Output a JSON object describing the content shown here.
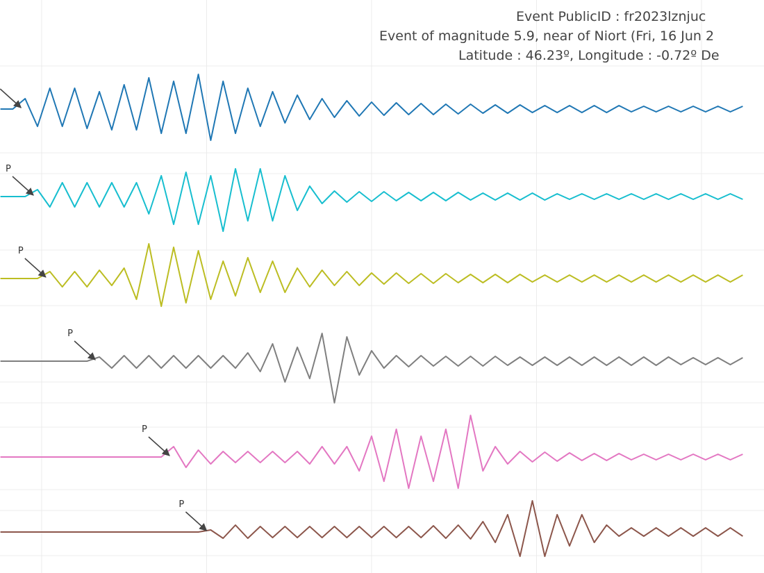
{
  "chart_data": {
    "type": "line",
    "title": [
      "Event PublicID : fr2023lznjuc",
      "Event of magnitude 5.9, near of Niort (Fri, 16 Jun 2",
      "Latitude : 46.23º, Longitude : -0.72º De"
    ],
    "x": [
      -5,
      -3.5,
      -2,
      -0.5,
      1,
      2.5,
      4,
      5.5,
      7,
      8.5,
      10,
      11.5,
      13,
      14.5,
      16,
      17.5,
      19,
      20.5,
      22,
      23.5,
      25,
      26.5,
      28,
      29.5,
      31,
      32.5,
      34,
      35.5,
      37,
      38.5,
      40,
      41.5,
      43,
      44.5,
      46,
      47.5,
      49,
      50.5,
      52,
      53.5,
      55,
      56.5,
      58,
      59.5,
      61,
      62.5,
      64,
      65.5,
      67,
      68.5,
      70,
      71.5,
      73,
      74.5,
      76,
      77.5,
      79,
      80.5,
      82,
      83.5,
      85
    ],
    "xlim": [
      -5.05,
      87.58
    ],
    "xticks": [
      0,
      20,
      40,
      60,
      80
    ],
    "ylim": [
      0,
      82.5
    ],
    "yticks": [
      2.5,
      9,
      12,
      21,
      24.5,
      27.5,
      38.5,
      46.5,
      57.5,
      60.5,
      73
    ],
    "grid": true,
    "series": [
      {
        "color": "#1f77b4",
        "values": [
          66.8,
          66.8,
          68.3,
          64.3,
          69.8,
          64.3,
          69.8,
          64.0,
          69.3,
          63.8,
          70.3,
          63.8,
          71.3,
          63.3,
          70.8,
          63.3,
          71.8,
          62.3,
          70.8,
          63.3,
          69.8,
          64.3,
          69.3,
          64.8,
          68.8,
          65.3,
          68.3,
          65.6,
          68.0,
          65.8,
          67.8,
          65.9,
          67.7,
          66.0,
          67.6,
          66.0,
          67.5,
          66.1,
          67.5,
          66.2,
          67.4,
          66.2,
          67.4,
          66.3,
          67.3,
          66.3,
          67.3,
          66.3,
          67.3,
          66.3,
          67.3,
          66.4,
          67.2,
          66.4,
          67.2,
          66.4,
          67.2,
          66.4,
          67.2,
          66.4,
          67.2
        ]
      },
      {
        "color": "#17becf",
        "annotation": "P",
        "values": [
          54.2,
          54.2,
          54.2,
          55.2,
          52.7,
          56.2,
          52.7,
          56.2,
          52.7,
          56.2,
          52.7,
          56.2,
          51.7,
          57.2,
          50.2,
          57.7,
          50.2,
          57.2,
          49.2,
          58.2,
          50.7,
          58.2,
          50.7,
          57.2,
          52.2,
          55.7,
          53.2,
          55.0,
          53.4,
          54.9,
          53.5,
          54.9,
          53.6,
          54.8,
          53.6,
          54.8,
          53.6,
          54.8,
          53.7,
          54.7,
          53.7,
          54.7,
          53.7,
          54.7,
          53.7,
          54.6,
          53.8,
          54.6,
          53.8,
          54.6,
          53.8,
          54.6,
          53.8,
          54.6,
          53.8,
          54.6,
          53.8,
          54.6,
          53.8,
          54.6,
          53.8
        ]
      },
      {
        "color": "#bcbd22",
        "annotation": "P",
        "values": [
          42.4,
          42.4,
          42.4,
          42.4,
          43.4,
          41.2,
          43.4,
          41.2,
          43.6,
          41.4,
          43.9,
          39.4,
          47.4,
          38.4,
          46.9,
          38.9,
          46.4,
          39.4,
          44.9,
          39.9,
          45.4,
          40.4,
          44.9,
          40.4,
          43.9,
          41.2,
          43.6,
          41.4,
          43.4,
          41.4,
          43.2,
          41.6,
          43.2,
          41.7,
          43.1,
          41.7,
          43.1,
          41.8,
          43.0,
          41.8,
          43.0,
          41.8,
          43.0,
          41.9,
          42.9,
          41.9,
          42.9,
          41.9,
          42.9,
          41.9,
          42.9,
          41.9,
          42.9,
          41.9,
          42.9,
          41.9,
          42.9,
          41.9,
          42.9,
          41.9,
          42.9
        ]
      },
      {
        "color": "#7f7f7f",
        "annotation": "P",
        "values": [
          30.5,
          30.5,
          30.5,
          30.5,
          30.5,
          30.5,
          30.5,
          30.5,
          31.1,
          29.5,
          31.3,
          29.5,
          31.3,
          29.5,
          31.3,
          29.5,
          31.3,
          29.5,
          31.3,
          29.5,
          31.7,
          29.0,
          33.0,
          27.5,
          32.5,
          28.0,
          34.5,
          24.5,
          34.0,
          28.5,
          32.0,
          29.5,
          31.3,
          29.7,
          31.3,
          29.8,
          31.2,
          29.8,
          31.2,
          29.8,
          31.2,
          29.9,
          31.1,
          29.9,
          31.1,
          29.9,
          31.1,
          29.9,
          31.1,
          29.9,
          31.1,
          29.9,
          31.1,
          29.9,
          31.1,
          30.0,
          31.0,
          30.0,
          31.0,
          30.0,
          31.0
        ]
      },
      {
        "color": "#e377c2",
        "annotation": "P",
        "values": [
          16.7,
          16.7,
          16.7,
          16.7,
          16.7,
          16.7,
          16.7,
          16.7,
          16.7,
          16.7,
          16.7,
          16.7,
          16.7,
          16.7,
          18.2,
          15.2,
          17.7,
          15.7,
          17.5,
          15.9,
          17.5,
          15.9,
          17.5,
          15.9,
          17.5,
          15.7,
          18.2,
          15.7,
          18.2,
          14.7,
          19.7,
          13.2,
          20.7,
          12.2,
          19.7,
          13.2,
          20.7,
          12.2,
          22.7,
          14.7,
          18.2,
          15.7,
          17.5,
          16.0,
          17.4,
          16.1,
          17.3,
          16.2,
          17.2,
          16.2,
          17.2,
          16.3,
          17.1,
          16.3,
          17.1,
          16.3,
          17.1,
          16.3,
          17.1,
          16.3,
          17.1
        ]
      },
      {
        "color": "#8c564b",
        "annotation": "P",
        "values": [
          5.9,
          5.9,
          5.9,
          5.9,
          5.9,
          5.9,
          5.9,
          5.9,
          5.9,
          5.9,
          5.9,
          5.9,
          5.9,
          5.9,
          5.9,
          5.9,
          5.9,
          6.2,
          5.0,
          6.9,
          5.0,
          6.7,
          5.1,
          6.7,
          5.1,
          6.7,
          5.1,
          6.7,
          5.1,
          6.7,
          5.1,
          6.7,
          5.1,
          6.7,
          5.1,
          6.8,
          5.0,
          6.9,
          4.9,
          7.4,
          4.4,
          8.4,
          2.4,
          10.4,
          2.4,
          8.4,
          3.9,
          8.4,
          4.4,
          6.9,
          5.3,
          6.5,
          5.3,
          6.5,
          5.3,
          6.5,
          5.3,
          6.5,
          5.3,
          6.5,
          5.3
        ]
      }
    ]
  }
}
